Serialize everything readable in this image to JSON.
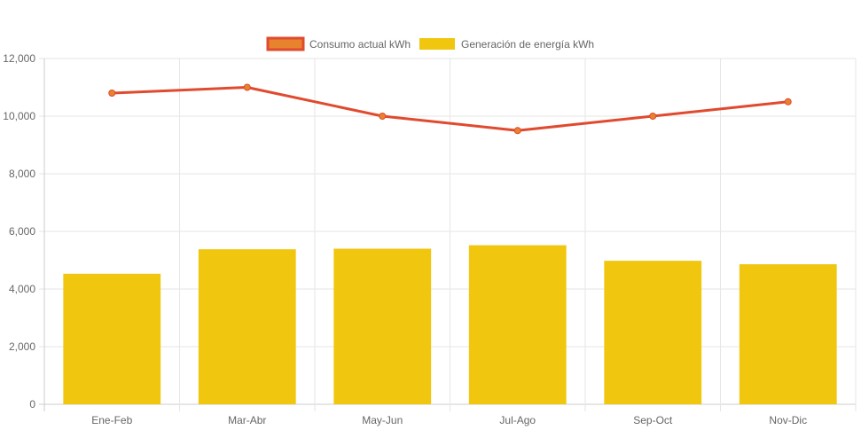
{
  "chart_data": {
    "type": "bar",
    "title": "",
    "xlabel": "",
    "ylabel": "",
    "ylim": [
      0,
      12000
    ],
    "ytick_step": 2000,
    "grid": true,
    "legend_position": "top-center",
    "categories": [
      "Ene-Feb",
      "Mar-Abr",
      "May-Jun",
      "Jul-Ago",
      "Sep-Oct",
      "Nov-Dic"
    ],
    "series": [
      {
        "name": "Consumo actual kWh",
        "kind": "line",
        "color": "#e04a2e",
        "marker_color": "#e8832d",
        "values": [
          10800,
          11000,
          10000,
          9500,
          10000,
          10500
        ]
      },
      {
        "name": "Generación de energía kWh",
        "kind": "bar",
        "color": "#f0c60f",
        "values": [
          4530,
          5380,
          5400,
          5520,
          4980,
          4860
        ]
      }
    ]
  }
}
